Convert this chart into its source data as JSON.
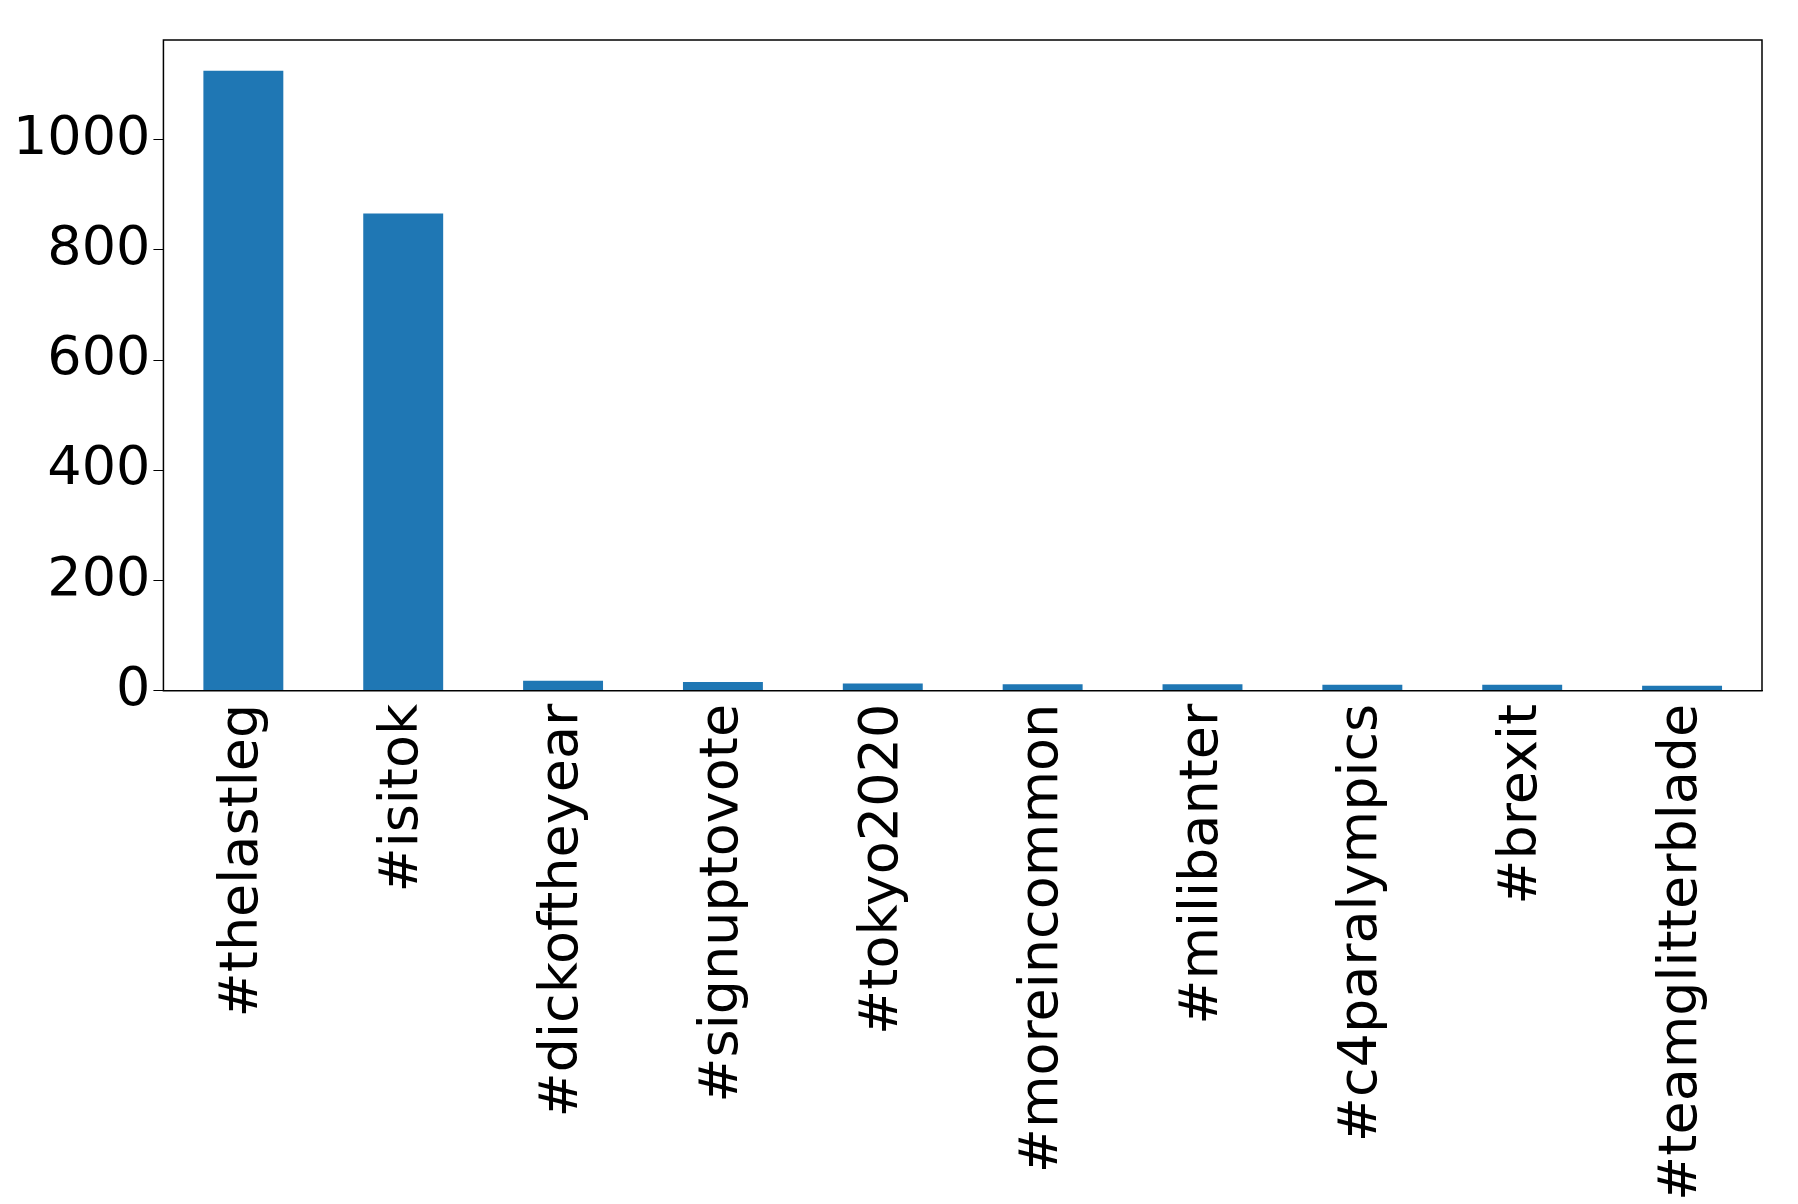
{
  "chart_data": {
    "type": "bar",
    "categories": [
      "#thelastleg",
      "#isitok",
      "#dickoftheyear",
      "#signuptovote",
      "#tokyo2020",
      "#moreincommon",
      "#milibanter",
      "#c4paralympics",
      "#brexit",
      "#teamglitterblade"
    ],
    "values": [
      1125,
      866,
      18,
      16,
      13,
      12,
      12,
      11,
      11,
      9
    ],
    "color": "#1f77b4",
    "ylim": [
      0,
      1181
    ],
    "yticks": [
      0,
      200,
      400,
      600,
      800,
      1000
    ],
    "grid": false,
    "legend": false
  }
}
